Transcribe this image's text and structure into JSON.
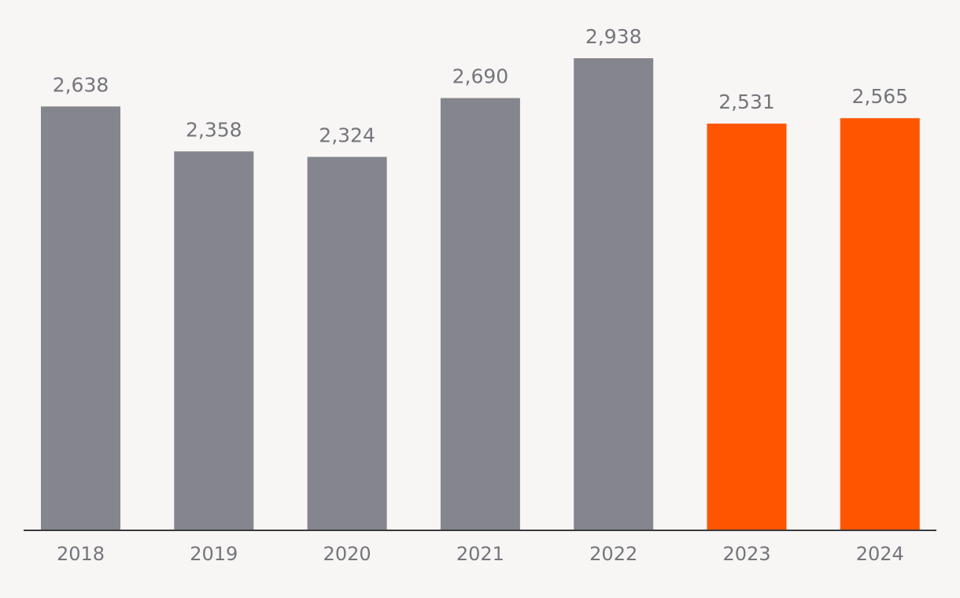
{
  "chart_data": {
    "type": "bar",
    "categories": [
      "2018",
      "2019",
      "2020",
      "2021",
      "2022",
      "2023",
      "2024"
    ],
    "values": [
      2638,
      2358,
      2324,
      2690,
      2938,
      2531,
      2565
    ],
    "value_labels": [
      "2,638",
      "2,358",
      "2,324",
      "2,690",
      "2,938",
      "2,531",
      "2,565"
    ],
    "title": "",
    "xlabel": "",
    "ylabel": "",
    "ylim": [
      0,
      2938
    ],
    "grid": false,
    "colors": {
      "default_bar": "#85858e",
      "highlight_bar": "#ff5500",
      "axis": "#3a3a3a",
      "text": "#75757c",
      "background": "#f7f6f4"
    },
    "highlighted_categories": [
      "2023",
      "2024"
    ]
  }
}
